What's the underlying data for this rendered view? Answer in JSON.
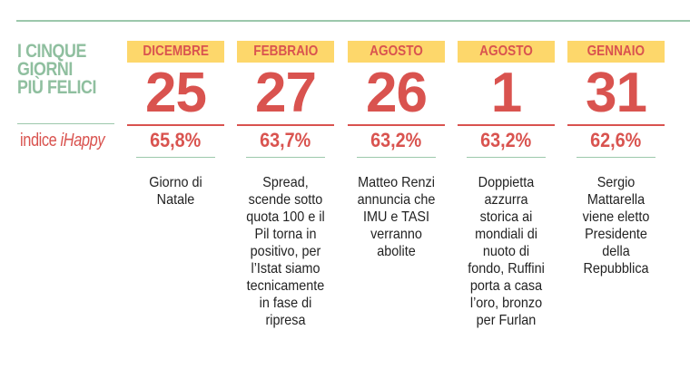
{
  "title_lines": [
    "I CINQUE",
    "GIORNI",
    "PIÙ FELICI"
  ],
  "index_label": {
    "prefix": "indice ",
    "brand": "iHappy"
  },
  "colors": {
    "red": "#d9534f",
    "green": "#9cc8ac",
    "yellow": "#fdd76b"
  },
  "days": [
    {
      "month": "DICEMBRE",
      "day": "25",
      "index": "65,8%",
      "description": "Giorno di Natale"
    },
    {
      "month": "FEBBRAIO",
      "day": "27",
      "index": "63,7%",
      "description": "Spread, scende sotto quota 100 e il Pil torna in positivo, per l’Istat siamo tecnicamente in fase di ripresa"
    },
    {
      "month": "AGOSTO",
      "day": "26",
      "index": "63,2%",
      "description": "Matteo Renzi annuncia che IMU e TASI verranno abolite"
    },
    {
      "month": "AGOSTO",
      "day": "1",
      "index": "63,2%",
      "description": "Doppietta azzurra storica ai mondiali di nuoto di fondo, Ruffini porta a casa l’oro, bronzo per Furlan"
    },
    {
      "month": "GENNAIO",
      "day": "31",
      "index": "62,6%",
      "description": "Sergio Mattarella viene eletto Presidente della Repubblica"
    }
  ]
}
